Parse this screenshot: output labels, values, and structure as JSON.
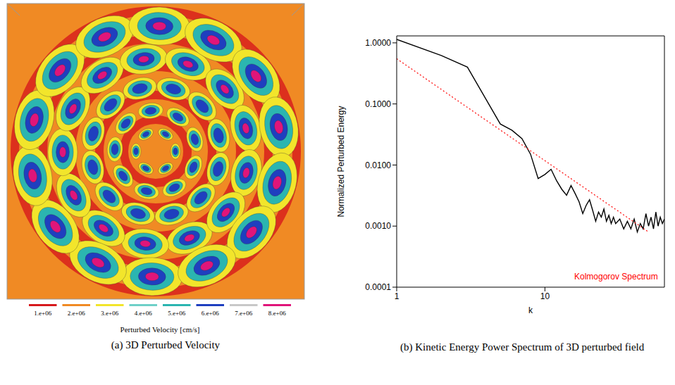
{
  "chart_data": [
    {
      "type": "image",
      "caption": "(a) 3D Perturbed Velocity",
      "colorbar": {
        "label": "Perturbed Velocity [cm/s]",
        "ticks": [
          {
            "value": 1000000,
            "label": "1.e+06"
          },
          {
            "value": 2000000,
            "label": "2.e+06"
          },
          {
            "value": 3000000,
            "label": "3.e+06"
          },
          {
            "value": 4000000,
            "label": "4.e+06"
          },
          {
            "value": 5000000,
            "label": "5.e+06"
          },
          {
            "value": 6000000,
            "label": "6.e+06"
          },
          {
            "value": 7000000,
            "label": "7.e+06"
          },
          {
            "value": 8000000,
            "label": "8.e+06"
          }
        ],
        "colors": [
          "#d7191c",
          "#f08a24",
          "#f2e52b",
          "#6fd0c8",
          "#2bb5b0",
          "#1f3fbf",
          "#c8c8c8",
          "#e0157a"
        ]
      }
    },
    {
      "type": "line",
      "caption": "(b) Kinetic Energy Power Spectrum of 3D perturbed field",
      "log": true,
      "xlabel": "k",
      "ylabel": "Normalized Perturbed Energy",
      "xlim": [
        1,
        64
      ],
      "ylim": [
        0.0001,
        1.3
      ],
      "xticks": [
        1,
        10
      ],
      "yticks": [
        {
          "value": 0.0001,
          "label": "0.0001"
        },
        {
          "value": 0.001,
          "label": "0.0010"
        },
        {
          "value": 0.01,
          "label": "0.0100"
        },
        {
          "value": 0.1,
          "label": "0.1000"
        },
        {
          "value": 1,
          "label": "1.0000"
        }
      ],
      "legend": "lower right",
      "series": [
        {
          "color": "#000000",
          "line_style": "solid",
          "x": [
            1,
            2,
            3,
            4,
            5,
            6,
            7,
            8,
            9,
            10,
            11,
            12,
            13,
            14,
            15,
            16,
            17,
            18,
            19,
            20,
            21,
            22,
            23,
            24,
            25,
            26,
            27,
            28,
            29,
            30,
            32,
            34,
            36,
            38,
            40,
            42,
            44,
            46,
            48,
            50,
            52,
            54,
            56,
            58,
            60,
            62,
            64
          ],
          "values": [
            1.14,
            0.62,
            0.4,
            0.12,
            0.047,
            0.037,
            0.027,
            0.015,
            0.006,
            0.007,
            0.0085,
            0.0055,
            0.004,
            0.0032,
            0.0046,
            0.0034,
            0.0025,
            0.0016,
            0.0022,
            0.0027,
            0.0018,
            0.0012,
            0.0017,
            0.0014,
            0.0019,
            0.0012,
            0.0015,
            0.0011,
            0.0014,
            0.0011,
            0.0013,
            0.0009,
            0.0012,
            0.0009,
            0.0013,
            0.0008,
            0.0011,
            0.0009,
            0.0016,
            0.001,
            0.0014,
            0.0009,
            0.0017,
            0.001,
            0.0014,
            0.0011,
            0.0013
          ]
        },
        {
          "name": "Kolmogorov Spectrum",
          "color": "#ff0000",
          "line_style": "dotted",
          "x": [
            1,
            50
          ],
          "values": [
            0.55,
            0.0008
          ]
        }
      ]
    }
  ]
}
